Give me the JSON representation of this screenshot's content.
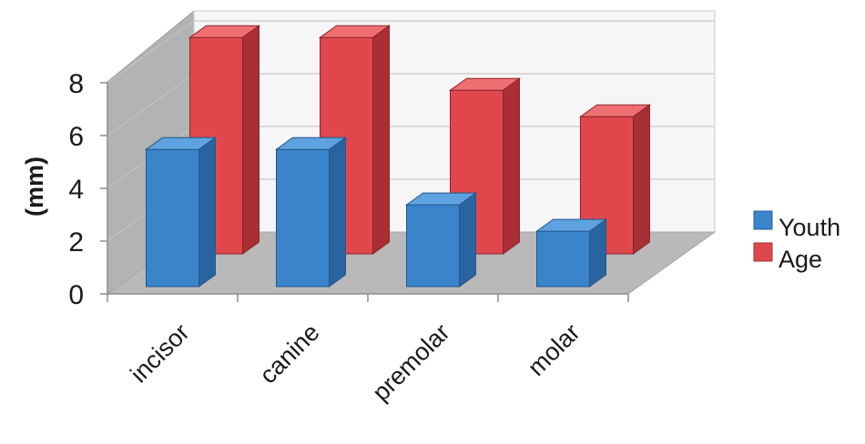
{
  "chart_data": {
    "type": "bar",
    "style": "3d-clustered-depth",
    "categories": [
      "incisor",
      "canine",
      "premolar",
      "molar"
    ],
    "series": [
      {
        "name": "Youth",
        "values": [
          5.2,
          5.2,
          3.1,
          2.1
        ],
        "color": "#3a84cc"
      },
      {
        "name": "Age",
        "values": [
          8.2,
          8.2,
          6.2,
          5.2
        ],
        "color": "#e0474c"
      }
    ],
    "title": "",
    "xlabel": "",
    "ylabel": "(mm)",
    "ylim": [
      0,
      8
    ],
    "yticks": [
      "0",
      "2",
      "4",
      "6",
      "8"
    ],
    "grid": true,
    "legend_position": "right"
  }
}
